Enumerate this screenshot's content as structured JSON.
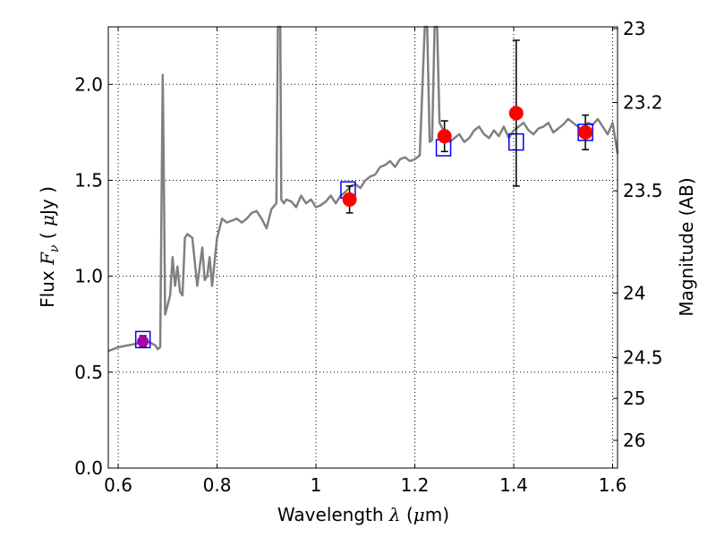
{
  "chart_data": {
    "type": "line",
    "title": "",
    "xlabel": {
      "prefix": "Wavelength  ",
      "symbol": "λ",
      "suffix": " (",
      "unit_symbol": "μ",
      "unit_tail": "m)"
    },
    "ylabel": {
      "prefix": "Flux  ",
      "symbol": "F",
      "subscript": "ν",
      "suffix": "  ( ",
      "unit_symbol": "μ",
      "unit_tail": "Jy )"
    },
    "y2label": "Magnitude (AB)",
    "xlim": [
      0.58,
      1.61
    ],
    "ylim": [
      0.0,
      2.3
    ],
    "x_ticks": [
      0.6,
      0.8,
      1.0,
      1.2,
      1.4,
      1.6
    ],
    "x_tick_labels": [
      "0.6",
      "0.8",
      "1",
      "1.2",
      "1.4",
      "1.6"
    ],
    "y_ticks": [
      0.0,
      0.5,
      1.0,
      1.5,
      2.0
    ],
    "y_tick_labels": [
      "0.0",
      "0.5",
      "1.0",
      "1.5",
      "2.0"
    ],
    "y2_ticks": [
      23,
      23.2,
      23.5,
      24,
      24.5,
      25,
      26
    ],
    "y2_tick_labels": [
      "23",
      "23.2",
      "23.5",
      "24",
      "24.5",
      "25",
      "26"
    ],
    "grid": true,
    "colors": {
      "model": "#808080",
      "observed": "#ff0000",
      "model_photometry": "#0000ff",
      "errorbar": "#000000",
      "first_point_fill": "#aa00aa"
    },
    "series": [
      {
        "role": "model_spectrum",
        "x": [
          0.58,
          0.6,
          0.62,
          0.64,
          0.66,
          0.675,
          0.68,
          0.685,
          0.69,
          0.692,
          0.695,
          0.7,
          0.705,
          0.71,
          0.715,
          0.72,
          0.725,
          0.73,
          0.735,
          0.74,
          0.75,
          0.76,
          0.77,
          0.775,
          0.78,
          0.785,
          0.79,
          0.8,
          0.81,
          0.82,
          0.83,
          0.84,
          0.85,
          0.86,
          0.87,
          0.88,
          0.89,
          0.9,
          0.91,
          0.92,
          0.923,
          0.925,
          0.928,
          0.93,
          0.935,
          0.94,
          0.95,
          0.96,
          0.97,
          0.98,
          0.99,
          1.0,
          1.01,
          1.02,
          1.03,
          1.04,
          1.05,
          1.06,
          1.07,
          1.08,
          1.09,
          1.1,
          1.11,
          1.12,
          1.13,
          1.14,
          1.15,
          1.16,
          1.17,
          1.18,
          1.19,
          1.2,
          1.21,
          1.22,
          1.225,
          1.23,
          1.235,
          1.24,
          1.245,
          1.25,
          1.26,
          1.27,
          1.28,
          1.29,
          1.3,
          1.31,
          1.32,
          1.33,
          1.34,
          1.35,
          1.36,
          1.37,
          1.38,
          1.39,
          1.4,
          1.41,
          1.42,
          1.43,
          1.44,
          1.45,
          1.46,
          1.47,
          1.48,
          1.49,
          1.5,
          1.51,
          1.52,
          1.53,
          1.54,
          1.55,
          1.56,
          1.57,
          1.58,
          1.59,
          1.6,
          1.61
        ],
        "y": [
          0.61,
          0.63,
          0.64,
          0.65,
          0.66,
          0.64,
          0.62,
          0.63,
          2.05,
          1.6,
          0.8,
          0.85,
          0.9,
          1.1,
          0.95,
          1.05,
          0.92,
          0.9,
          1.2,
          1.22,
          1.2,
          0.95,
          1.15,
          0.98,
          1.0,
          1.1,
          0.95,
          1.2,
          1.3,
          1.28,
          1.29,
          1.3,
          1.28,
          1.3,
          1.33,
          1.34,
          1.3,
          1.25,
          1.35,
          1.38,
          2.3,
          2.3,
          2.3,
          1.4,
          1.38,
          1.4,
          1.39,
          1.36,
          1.42,
          1.38,
          1.4,
          1.36,
          1.37,
          1.39,
          1.42,
          1.38,
          1.42,
          1.44,
          1.47,
          1.48,
          1.46,
          1.5,
          1.52,
          1.53,
          1.57,
          1.58,
          1.6,
          1.57,
          1.61,
          1.62,
          1.6,
          1.61,
          1.63,
          2.3,
          2.3,
          1.7,
          1.71,
          2.3,
          2.3,
          1.8,
          1.75,
          1.7,
          1.72,
          1.74,
          1.7,
          1.72,
          1.76,
          1.78,
          1.74,
          1.72,
          1.76,
          1.73,
          1.78,
          1.72,
          1.76,
          1.78,
          1.8,
          1.76,
          1.74,
          1.77,
          1.78,
          1.8,
          1.75,
          1.77,
          1.79,
          1.82,
          1.8,
          1.78,
          1.76,
          1.8,
          1.79,
          1.82,
          1.78,
          1.74,
          1.8,
          1.64
        ]
      },
      {
        "role": "observed",
        "x": [
          0.65,
          1.068,
          1.26,
          1.405,
          1.545
        ],
        "y": [
          0.66,
          1.4,
          1.73,
          1.85,
          1.75
        ],
        "yerr": [
          0.03,
          0.07,
          0.08,
          0.38,
          0.09
        ]
      },
      {
        "role": "model_photometry",
        "x": [
          0.65,
          1.065,
          1.258,
          1.405,
          1.545
        ],
        "y": [
          0.67,
          1.45,
          1.67,
          1.7,
          1.75
        ]
      }
    ]
  }
}
